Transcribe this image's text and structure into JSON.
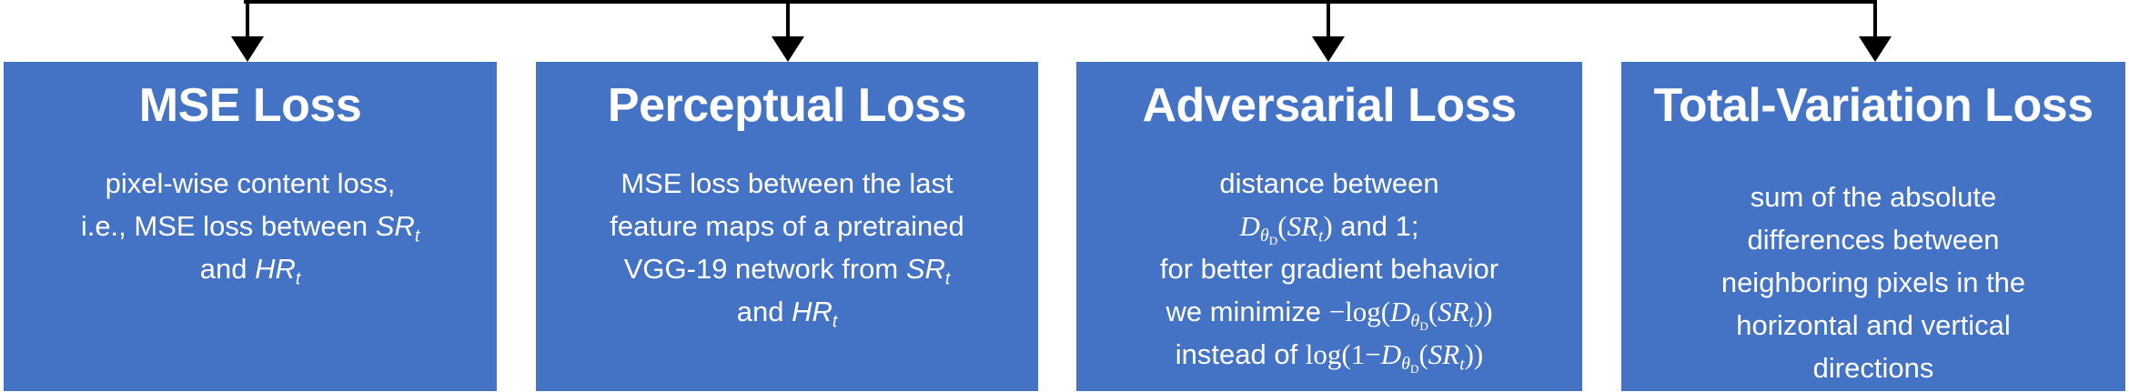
{
  "colors": {
    "box_fill": "#4472c4",
    "box_text": "#ffffff",
    "connector": "#000000",
    "background": "#ffffff"
  },
  "boxes": [
    {
      "title": "MSE Loss",
      "description": "pixel-wise content loss, i.e., MSE loss between SR_t and HR_t"
    },
    {
      "title": "Perceptual Loss",
      "description": "MSE loss between the last feature maps of a pretrained VGG-19 network from SR_t and HR_t"
    },
    {
      "title": "Adversarial Loss",
      "description": "distance between D_θD(SR_t) and 1; for better gradient behavior we minimize −log(D_θD(SR_t)) instead of log(1−D_θD(SR_t))"
    },
    {
      "title": "Total-Variation Loss",
      "description": "sum of the absolute differences between neighboring pixels in the horizontal and vertical directions"
    }
  ],
  "text": {
    "mse_1": "pixel-wise content loss,",
    "mse_2": "i.e., MSE loss between ",
    "mse_3": "and ",
    "perc_1": "MSE loss between the last",
    "perc_2": "feature maps of a pretrained",
    "perc_3": "VGG-19 network from ",
    "perc_4": "and ",
    "adv_1": "distance between",
    "adv_2b": " and 1;",
    "adv_3": "for better gradient behavior",
    "adv_4a": "we minimize ",
    "adv_5a": "instead of ",
    "tv_1": "sum of the absolute",
    "tv_2": "differences between",
    "tv_3": "neighboring pixels in the",
    "tv_4": "horizontal and vertical",
    "tv_5": "directions"
  },
  "math": {
    "SR": "SR",
    "HR": "HR",
    "t": "t",
    "D": "D",
    "theta": "θ",
    "subD": "D",
    "minus_log": "−log(",
    "log1": "log(1−",
    "lparen": "(",
    "rparen": ")",
    "rparen2": "))"
  }
}
